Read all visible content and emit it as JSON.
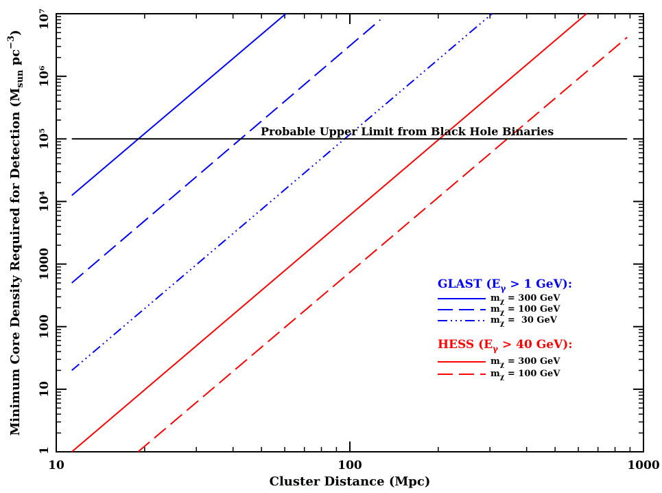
{
  "chart_data": {
    "type": "line",
    "xscale": "log",
    "yscale": "log",
    "xlabel": "Cluster Distance (Mpc)",
    "ylabel_parts": {
      "main": "Minimum Core Density Required for Detection (M",
      "sub": "sun",
      "mid": " pc",
      "sup": "−3",
      "end": ")"
    },
    "xlim": [
      10,
      1000
    ],
    "ylim": [
      1,
      10000000
    ],
    "x_ticks": [
      {
        "value": 10,
        "label": "10"
      },
      {
        "value": 100,
        "label": "100"
      },
      {
        "value": 1000,
        "label": "1000"
      }
    ],
    "y_ticks": [
      {
        "value": 1,
        "label": "1"
      },
      {
        "value": 10,
        "label": "10"
      },
      {
        "value": 100,
        "label": "100"
      },
      {
        "value": 1000,
        "label": "1000"
      },
      {
        "value": 10000,
        "label": "10⁴"
      },
      {
        "value": 100000,
        "label": "10⁵"
      },
      {
        "value": 1000000,
        "label": "10⁶"
      },
      {
        "value": 10000000,
        "label": "10⁷"
      }
    ],
    "series": [
      {
        "group": "GLAST",
        "mass": "300 GeV",
        "color": "#0000ff",
        "dash": "solid",
        "points": [
          [
            11.3,
            12500
          ],
          [
            60.5,
            10000000
          ]
        ]
      },
      {
        "group": "GLAST",
        "mass": "100 GeV",
        "color": "#0000ff",
        "dash": "dashed",
        "points": [
          [
            11.3,
            500
          ],
          [
            127,
            8000000
          ]
        ]
      },
      {
        "group": "GLAST",
        "mass": "30 GeV",
        "color": "#0000ff",
        "dash": "dash-dot-dot-dot",
        "points": [
          [
            11.3,
            20
          ],
          [
            305,
            10000000
          ]
        ]
      },
      {
        "group": "HESS",
        "mass": "300 GeV",
        "color": "#ff0000",
        "dash": "solid",
        "points": [
          [
            11.3,
            1
          ],
          [
            640,
            10000000
          ]
        ]
      },
      {
        "group": "HESS",
        "mass": "100 GeV",
        "color": "#ff0000",
        "dash": "dashed",
        "points": [
          [
            19,
            1
          ],
          [
            880,
            4200000
          ]
        ]
      },
      {
        "group": "limit",
        "color": "#000000",
        "dash": "solid",
        "points": [
          [
            11.3,
            100000
          ],
          [
            880,
            100000
          ]
        ]
      }
    ],
    "annotation": "Probable Upper Limit from Black Hole Binaries",
    "legend": {
      "placement": "lower-right",
      "groups": [
        {
          "title_parts": {
            "a": "GLAST (E",
            "sub": "γ",
            "b": " > 1 GeV):"
          },
          "color": "#0000ff",
          "entries": [
            {
              "dash": "solid",
              "label_prefix": "m",
              "label_sub": "χ",
              "label_value": " = 300 GeV"
            },
            {
              "dash": "dashed",
              "label_prefix": "m",
              "label_sub": "χ",
              "label_value": " = 100 GeV"
            },
            {
              "dash": "dash-dot-dot-dot",
              "label_prefix": "m",
              "label_sub": "χ",
              "label_value": " =  30 GeV"
            }
          ]
        },
        {
          "title_parts": {
            "a": "HESS (E",
            "sub": "γ",
            "b": " > 40 GeV):"
          },
          "color": "#ff0000",
          "entries": [
            {
              "dash": "solid",
              "label_prefix": "m",
              "label_sub": "χ",
              "label_value": " = 300 GeV"
            },
            {
              "dash": "dashed",
              "label_prefix": "m",
              "label_sub": "χ",
              "label_value": " = 100 GeV"
            }
          ]
        }
      ]
    }
  }
}
